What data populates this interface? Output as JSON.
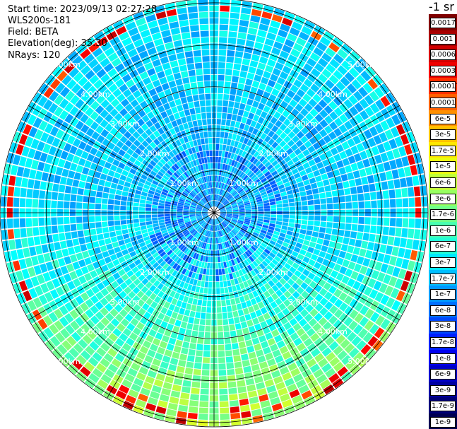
{
  "header": {
    "start_time": "Start time: 2023/09/13 02:27:28",
    "instrument": "WLS200s-181",
    "field": "Field: BETA",
    "elevation": "Elevation(deg): 35.30",
    "nrays": "NRays: 120"
  },
  "colorbar": {
    "unit": "-1 sr",
    "ticks": [
      "0.0017",
      "0.001",
      "0.0006",
      "0.0003",
      "0.00017",
      "0.0001",
      "6e-5",
      "3e-5",
      "1.7e-5",
      "1e-5",
      "6e-6",
      "3e-6",
      "1.7e-6",
      "1e-6",
      "6e-7",
      "3e-7",
      "1.7e-7",
      "1e-7",
      "6e-8",
      "3e-8",
      "1.7e-8",
      "1e-8",
      "6e-9",
      "3e-9",
      "1.7e-9",
      "1e-9"
    ],
    "colors": [
      "#800000",
      "#a80000",
      "#d00000",
      "#f00000",
      "#ff3000",
      "#ff6000",
      "#ff9000",
      "#ffc000",
      "#ffe800",
      "#e8ff10",
      "#c0ff38",
      "#98ff60",
      "#70ff88",
      "#48ffb0",
      "#20ffd8",
      "#00e8ff",
      "#00c0ff",
      "#0098ff",
      "#0070ff",
      "#0048ff",
      "#0020ff",
      "#0000f0",
      "#0000c8",
      "#0000a0",
      "#000078",
      "#000050"
    ]
  },
  "chart_data": {
    "type": "heatmap",
    "subtype": "polar-ppi",
    "field": "BETA",
    "n_rays": 120,
    "elevation_deg": 35.3,
    "range_rings_km": [
      1,
      2,
      3,
      4,
      5
    ],
    "range_labels": [
      "1.00km",
      "2.00km",
      "3.00km",
      "4.00km",
      "5.00km"
    ],
    "max_range_km": 5.1,
    "azimuth_spokes_deg": [
      0,
      30,
      60,
      90,
      120,
      150,
      180,
      210,
      240,
      270,
      300,
      330
    ],
    "color_scale": "log",
    "value_range": [
      1e-09,
      0.0017
    ]
  }
}
